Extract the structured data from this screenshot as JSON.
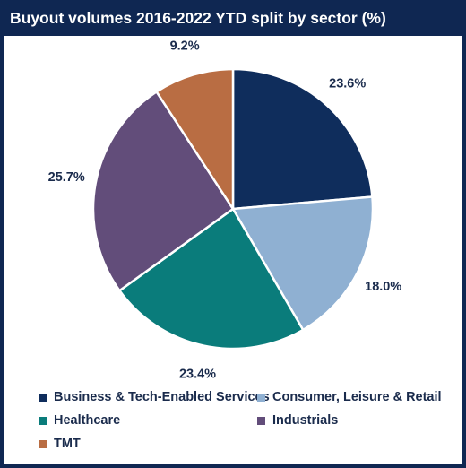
{
  "chart_data": {
    "type": "pie",
    "title": "Buyout volumes 2016-2022 YTD split by sector (%)",
    "unit": "%",
    "start_angle_deg": 0,
    "direction": "clockwise",
    "slices": [
      {
        "label": "Business & Tech-Enabled Services",
        "value": 23.6,
        "value_label": "23.6%",
        "color": "#0f2d5c"
      },
      {
        "label": "Consumer, Leisure & Retail",
        "value": 18.0,
        "value_label": "18.0%",
        "color": "#8fb0d2"
      },
      {
        "label": "Healthcare",
        "value": 23.4,
        "value_label": "23.4%",
        "color": "#0a7c7b"
      },
      {
        "label": "Industrials",
        "value": 25.7,
        "value_label": "25.7%",
        "color": "#624d7a"
      },
      {
        "label": "TMT",
        "value": 9.2,
        "value_label": "9.2%",
        "color": "#b96d43"
      }
    ],
    "legend_position": "bottom",
    "label_color": "#1a2b4c",
    "border_color": "#0f2752"
  }
}
